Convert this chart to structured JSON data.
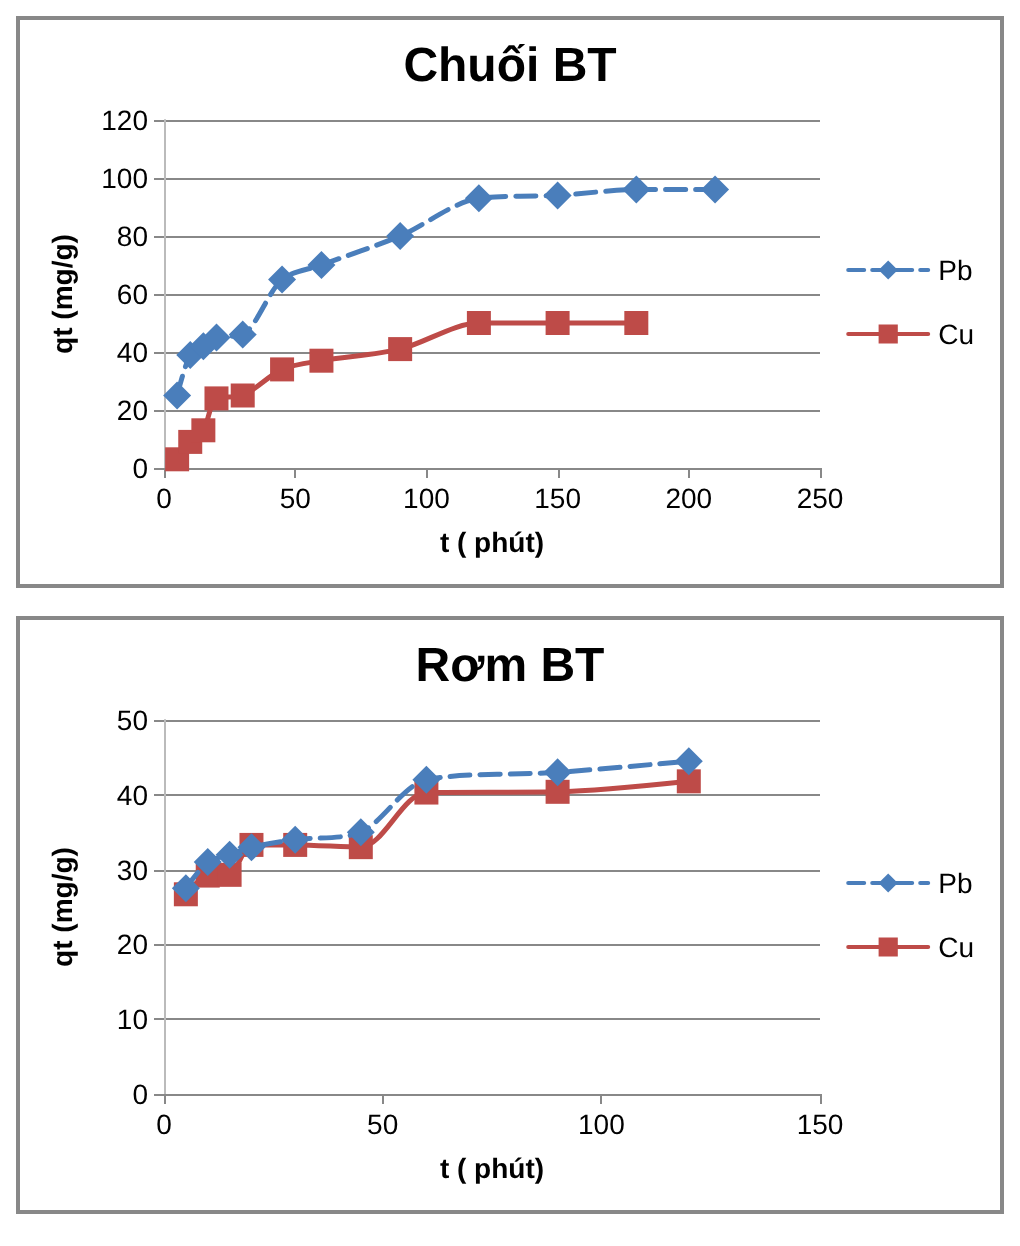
{
  "chart_data": [
    {
      "type": "line",
      "title": "Chuối BT",
      "xlabel": "t ( phút)",
      "ylabel": "qt (mg/g)",
      "xlim": [
        0,
        250
      ],
      "xticks": [
        0,
        50,
        100,
        150,
        200,
        250
      ],
      "ylim": [
        0,
        120
      ],
      "yticks": [
        0,
        20,
        40,
        60,
        80,
        100,
        120
      ],
      "grid": "y",
      "legend": "right",
      "series": [
        {
          "name": "Pb",
          "color": "#4a7ebb",
          "marker": "diamond",
          "line_style": "dashed",
          "x": [
            5,
            10,
            15,
            20,
            30,
            45,
            60,
            90,
            120,
            150,
            180,
            210
          ],
          "values": [
            25,
            39,
            42,
            45,
            46,
            65,
            70,
            80,
            93,
            94,
            96,
            96
          ]
        },
        {
          "name": "Cu",
          "color": "#be4b48",
          "marker": "square",
          "line_style": "solid",
          "x": [
            5,
            10,
            15,
            20,
            30,
            45,
            60,
            90,
            120,
            150,
            180
          ],
          "values": [
            3,
            9,
            13,
            24,
            25,
            34,
            37,
            41,
            50,
            50,
            50
          ]
        }
      ]
    },
    {
      "type": "line",
      "title": "Rơm BT",
      "xlabel": "t ( phút)",
      "ylabel": "qt (mg/g)",
      "xlim": [
        0,
        150
      ],
      "xticks": [
        0,
        50,
        100,
        150
      ],
      "ylim": [
        0,
        50
      ],
      "yticks": [
        0,
        10,
        20,
        30,
        40,
        50
      ],
      "grid": "y",
      "legend": "right",
      "series": [
        {
          "name": "Pb",
          "color": "#4a7ebb",
          "marker": "diamond",
          "line_style": "dashed",
          "x": [
            5,
            10,
            15,
            20,
            30,
            45,
            60,
            90,
            120
          ],
          "values": [
            27.5,
            31,
            32,
            33,
            34,
            35,
            42,
            43,
            44.5
          ]
        },
        {
          "name": "Cu",
          "color": "#be4b48",
          "marker": "square",
          "line_style": "solid",
          "x": [
            5,
            10,
            15,
            20,
            30,
            45,
            60,
            90,
            120
          ],
          "values": [
            26.7,
            29.2,
            29.3,
            33.3,
            33.3,
            33,
            40.3,
            40.4,
            41.8
          ]
        }
      ]
    }
  ]
}
